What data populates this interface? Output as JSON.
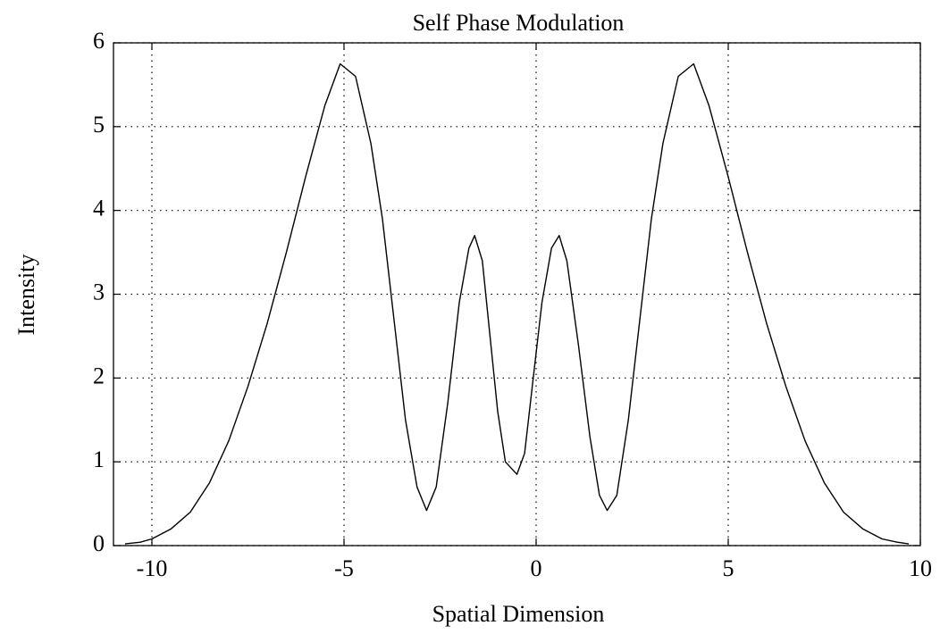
{
  "chart_data": {
    "type": "line",
    "title": "Self Phase Modulation",
    "x_label": "Spatial Dimension",
    "y_label": "Intensity",
    "x": [
      -10.7,
      -10.3,
      -10,
      -9.5,
      -9,
      -8.5,
      -8,
      -7.5,
      -7,
      -6.5,
      -6,
      -5.5,
      -5.1,
      -4.7,
      -4.3,
      -4,
      -3.7,
      -3.4,
      -3.1,
      -2.85,
      -2.6,
      -2.3,
      -2,
      -1.75,
      -1.6,
      -1.4,
      -1.2,
      -1.0,
      -0.8,
      -0.5,
      -0.3,
      -0.1,
      0.15,
      0.4,
      0.6,
      0.8,
      1.1,
      1.4,
      1.65,
      1.85,
      2.1,
      2.4,
      2.7,
      3.0,
      3.3,
      3.7,
      4.1,
      4.5,
      5.0,
      5.5,
      6.0,
      6.5,
      7.0,
      7.5,
      8,
      8.5,
      9,
      9.4,
      9.7
    ],
    "series": [
      {
        "name": "Intensity",
        "color": "#000000",
        "values": [
          0.02,
          0.04,
          0.08,
          0.2,
          0.4,
          0.75,
          1.25,
          1.9,
          2.65,
          3.5,
          4.4,
          5.25,
          5.75,
          5.6,
          4.8,
          3.9,
          2.7,
          1.5,
          0.7,
          0.42,
          0.7,
          1.7,
          2.9,
          3.55,
          3.7,
          3.4,
          2.5,
          1.6,
          1.0,
          0.85,
          1.1,
          1.9,
          2.9,
          3.55,
          3.7,
          3.4,
          2.4,
          1.3,
          0.6,
          0.42,
          0.6,
          1.5,
          2.7,
          3.9,
          4.8,
          5.6,
          5.75,
          5.25,
          4.4,
          3.5,
          2.65,
          1.9,
          1.25,
          0.75,
          0.4,
          0.2,
          0.08,
          0.04,
          0.02
        ]
      }
    ],
    "xlim": [
      -11,
      10
    ],
    "xticks": [
      -10,
      -5,
      0,
      5,
      10
    ],
    "ylim": [
      0,
      6
    ],
    "yticks": [
      0,
      1,
      2,
      3,
      4,
      5,
      6
    ],
    "grid": true
  }
}
